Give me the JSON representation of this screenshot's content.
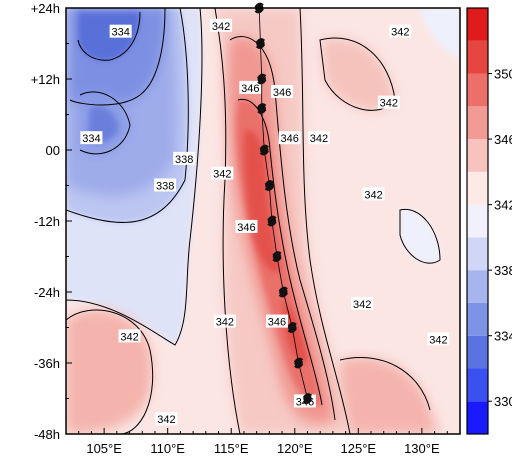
{
  "chart_data": {
    "type": "heatmap",
    "title": "",
    "xlabel": "",
    "ylabel": "",
    "x_ticks": [
      {
        "value": 105,
        "label": "105°E"
      },
      {
        "value": 110,
        "label": "110°E"
      },
      {
        "value": 115,
        "label": "115°E"
      },
      {
        "value": 120,
        "label": "120°E"
      },
      {
        "value": 125,
        "label": "125°E"
      },
      {
        "value": 130,
        "label": "130°E"
      }
    ],
    "y_ticks": [
      {
        "value": 24,
        "label": "+24h"
      },
      {
        "value": 12,
        "label": "+12h"
      },
      {
        "value": 0,
        "label": "00"
      },
      {
        "value": -12,
        "label": "-12h"
      },
      {
        "value": -24,
        "label": "-24h"
      },
      {
        "value": -36,
        "label": "-36h"
      },
      {
        "value": -48,
        "label": "-48h"
      }
    ],
    "xlim": [
      102,
      133
    ],
    "ylim": [
      -48,
      24
    ],
    "colorbar": {
      "levels": [
        330,
        332,
        334,
        336,
        338,
        340,
        342,
        344,
        346,
        348,
        350
      ],
      "tick_labels": [
        "330",
        "334",
        "338",
        "342",
        "346",
        "350"
      ],
      "colors": [
        "#1a1aff",
        "#3a50f0",
        "#5a72e2",
        "#7f93e6",
        "#a7b5ef",
        "#cfd6f6",
        "#f1f1fb",
        "#fde9e6",
        "#f8c3be",
        "#f29a94",
        "#ec6f69",
        "#e64540",
        "#e01b1b"
      ]
    },
    "series": [
      {
        "name": "",
        "type": "track",
        "points": [
          [
            117.2,
            24
          ],
          [
            117.3,
            18
          ],
          [
            117.4,
            12
          ],
          [
            117.4,
            7
          ],
          [
            117.6,
            0
          ],
          [
            118.0,
            -6
          ],
          [
            118.2,
            -12
          ],
          [
            118.6,
            -18
          ],
          [
            119.1,
            -24
          ],
          [
            119.8,
            -30
          ],
          [
            120.3,
            -36
          ],
          [
            121.0,
            -42
          ]
        ]
      }
    ],
    "contour_labels": [
      {
        "text": "334",
        "x": 106.3,
        "y": 20
      },
      {
        "text": "334",
        "x": 104.0,
        "y": 2
      },
      {
        "text": "338",
        "x": 109.8,
        "y": -6
      },
      {
        "text": "338",
        "x": 111.3,
        "y": -1.5
      },
      {
        "text": "342",
        "x": 114.2,
        "y": 21
      },
      {
        "text": "342",
        "x": 114.3,
        "y": -4
      },
      {
        "text": "342",
        "x": 114.5,
        "y": -29
      },
      {
        "text": "342",
        "x": 107.0,
        "y": -31.5
      },
      {
        "text": "342",
        "x": 109.9,
        "y": -45.5
      },
      {
        "text": "346",
        "x": 116.5,
        "y": 10.5
      },
      {
        "text": "346",
        "x": 119.0,
        "y": 9.8
      },
      {
        "text": "346",
        "x": 119.6,
        "y": 2
      },
      {
        "text": "346",
        "x": 116.2,
        "y": -13
      },
      {
        "text": "346",
        "x": 118.6,
        "y": -29
      },
      {
        "text": "346",
        "x": 120.8,
        "y": -42.5
      },
      {
        "text": "342",
        "x": 121.9,
        "y": 2
      },
      {
        "text": "342",
        "x": 128.3,
        "y": 20
      },
      {
        "text": "342",
        "x": 127.4,
        "y": 8
      },
      {
        "text": "342",
        "x": 126.2,
        "y": -7.5
      },
      {
        "text": "342",
        "x": 125.3,
        "y": -26
      },
      {
        "text": "342",
        "x": 131.3,
        "y": -32
      }
    ]
  }
}
